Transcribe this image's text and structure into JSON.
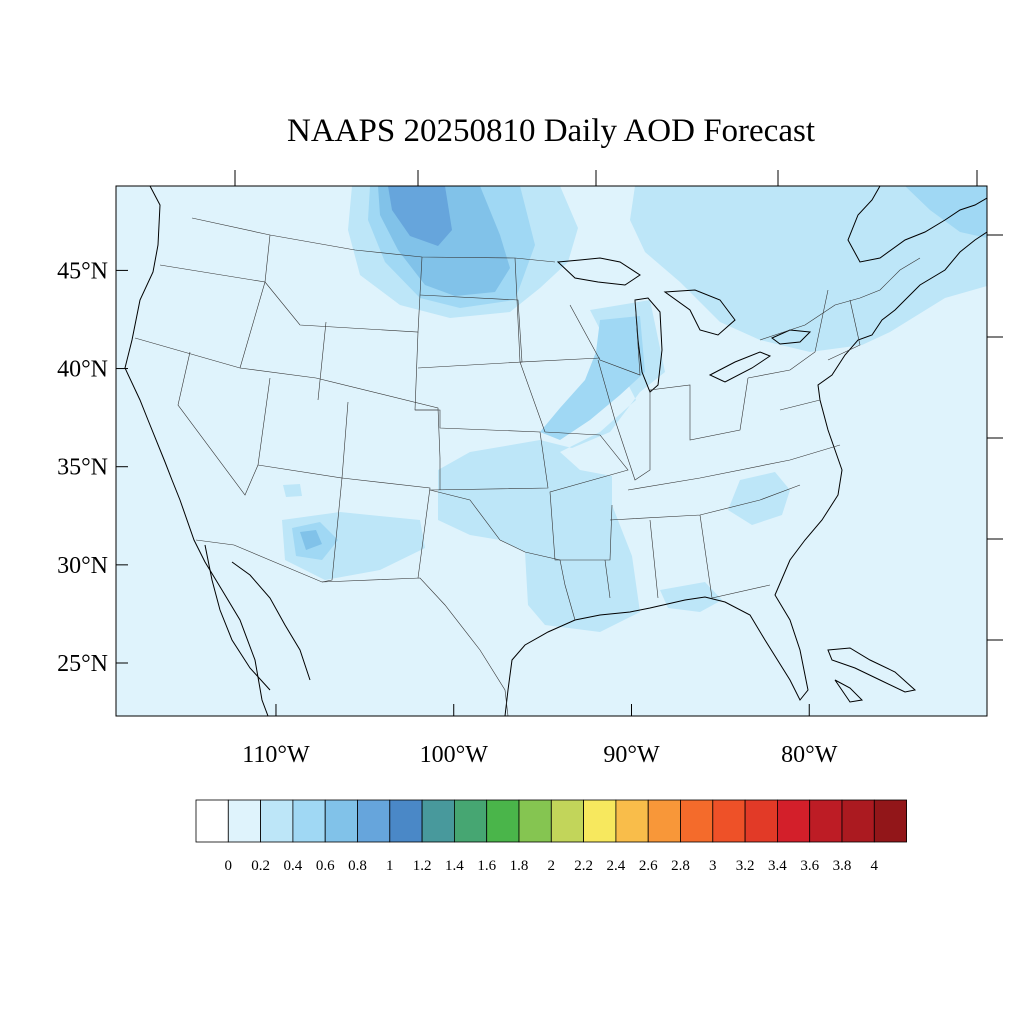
{
  "title": "NAAPS 20250810 Daily AOD Forecast",
  "map": {
    "lon_range": [
      -119,
      -70
    ],
    "lat_range": [
      22.3,
      49.3
    ],
    "lat_ticks": [
      {
        "value": 45,
        "label": "45°N"
      },
      {
        "value": 40,
        "label": "40°N"
      },
      {
        "value": 35,
        "label": "35°N"
      },
      {
        "value": 30,
        "label": "30°N"
      },
      {
        "value": 25,
        "label": "25°N"
      }
    ],
    "lon_ticks": [
      {
        "value": -110,
        "label": "110°W"
      },
      {
        "value": -100,
        "label": "100°W"
      },
      {
        "value": -90,
        "label": "90°W"
      },
      {
        "value": -80,
        "label": "80°W"
      }
    ],
    "background_level": "0.2",
    "background_color": "#dff3fc"
  },
  "colorbar": {
    "colors": [
      "#ffffff",
      "#dff3fc",
      "#bde6f8",
      "#a0d8f4",
      "#81c2e9",
      "#66a5dc",
      "#4a88c7",
      "#48999c",
      "#46a672",
      "#4ab54a",
      "#85c551",
      "#c2d55a",
      "#f7e85e",
      "#f9bd4a",
      "#f89739",
      "#f46b2b",
      "#ee5128",
      "#e23a27",
      "#d31f2a",
      "#bd1c25",
      "#ab1a20",
      "#921619"
    ],
    "labels": [
      "0",
      "0.2",
      "0.4",
      "0.6",
      "0.8",
      "1",
      "1.2",
      "1.4",
      "1.6",
      "1.8",
      "2",
      "2.2",
      "2.4",
      "2.6",
      "2.8",
      "3",
      "3.2",
      "3.4",
      "3.6",
      "3.8",
      "4"
    ]
  }
}
